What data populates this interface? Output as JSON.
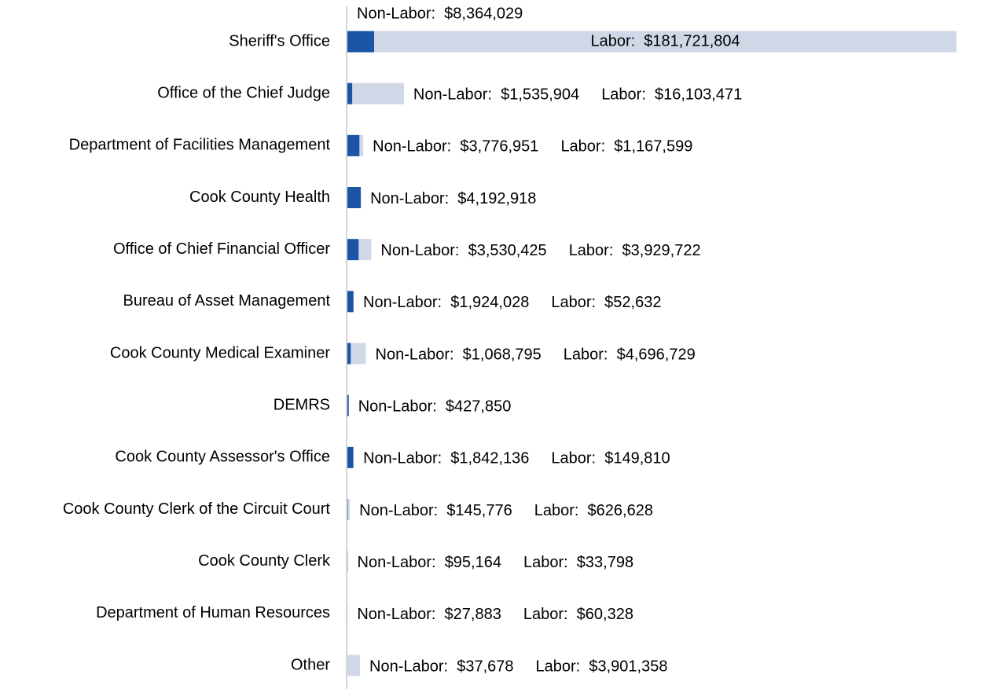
{
  "chart_data": {
    "type": "stacked-bar-horizontal",
    "categories": [
      "Sheriff's Office",
      "Office of the Chief Judge",
      "Department of Facilities Management",
      "Cook County Health",
      "Office of Chief Financial Officer",
      "Bureau of Asset Management",
      "Cook County Medical Examiner",
      "DEMRS",
      "Cook County Assessor's Office",
      "Cook County Clerk of the Circuit Court",
      "Cook County Clerk",
      "Department of Human Resources",
      "Other"
    ],
    "series": [
      {
        "name": "Non-Labor",
        "color": "#1b56a6",
        "values": [
          8364029,
          1535904,
          3776951,
          4192918,
          3530425,
          1924028,
          1068795,
          427850,
          1842136,
          145776,
          95164,
          27883,
          37678
        ],
        "value_labels": [
          "Non-Labor:  $8,364,029",
          "Non-Labor:  $1,535,904",
          "Non-Labor:  $3,776,951",
          "Non-Labor:  $4,192,918",
          "Non-Labor:  $3,530,425",
          "Non-Labor:  $1,924,028",
          "Non-Labor:  $1,068,795",
          "Non-Labor:  $427,850",
          "Non-Labor:  $1,842,136",
          "Non-Labor:  $145,776",
          "Non-Labor:  $95,164",
          "Non-Labor:  $27,883",
          "Non-Labor:  $37,678"
        ]
      },
      {
        "name": "Labor",
        "color": "#d0d8e8",
        "values": [
          181721804,
          16103471,
          1167599,
          null,
          3929722,
          52632,
          4696729,
          null,
          149810,
          626628,
          33798,
          60328,
          3901358
        ],
        "value_labels": [
          "Labor:  $181,721,804",
          "Labor:  $16,103,471",
          "Labor:  $1,167,599",
          null,
          "Labor:  $3,929,722",
          "Labor:  $52,632",
          "Labor:  $4,696,729",
          null,
          "Labor:  $149,810",
          "Labor:  $626,628",
          "Labor:  $33,798",
          "Labor:  $60,328",
          "Labor:  $3,901,358"
        ]
      }
    ]
  }
}
